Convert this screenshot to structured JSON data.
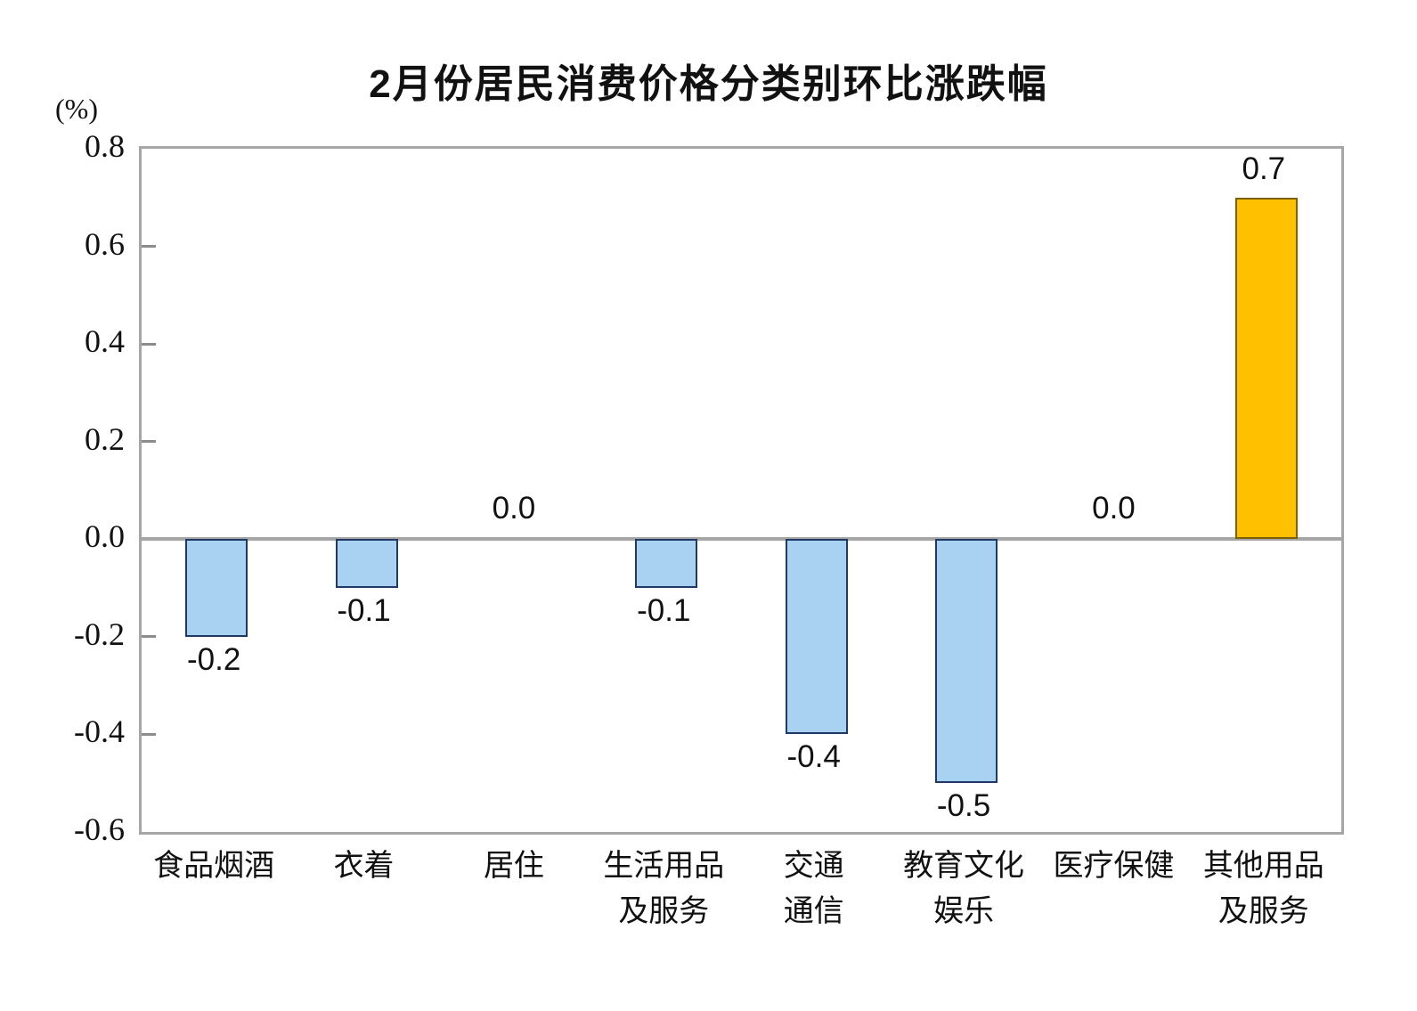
{
  "chart_data": {
    "type": "bar",
    "title": "2月份居民消费价格分类别环比涨跌幅",
    "unit_label": "(%)",
    "categories": [
      "食品烟酒",
      "衣着",
      "居住",
      "生活用品及服务",
      "交通通信",
      "教育文化娱乐",
      "医疗保健",
      "其他用品及服务"
    ],
    "category_lines": [
      [
        "食品烟酒"
      ],
      [
        "衣着"
      ],
      [
        "居住"
      ],
      [
        "生活用品",
        "及服务"
      ],
      [
        "交通",
        "通信"
      ],
      [
        "教育文化",
        "娱乐"
      ],
      [
        "医疗保健"
      ],
      [
        "其他用品",
        "及服务"
      ]
    ],
    "values": [
      -0.2,
      -0.1,
      0.0,
      -0.1,
      -0.4,
      -0.5,
      0.0,
      0.7
    ],
    "value_labels": [
      "-0.2",
      "-0.1",
      "0.0",
      "-0.1",
      "-0.4",
      "-0.5",
      "0.0",
      "0.7"
    ],
    "ylim": [
      -0.6,
      0.8
    ],
    "ytick_labels": [
      "0.8",
      "0.6",
      "0.4",
      "0.2",
      "0.0",
      "-0.2",
      "-0.4",
      "-0.6"
    ],
    "ytick_values": [
      0.8,
      0.6,
      0.4,
      0.2,
      0.0,
      -0.2,
      -0.4,
      -0.6
    ],
    "grid": "off",
    "legend": "none",
    "colors": {
      "negative_bar_fill": "#a8d1f2",
      "negative_bar_border": "#1f3864",
      "positive_bar_fill": "#ffc000",
      "positive_bar_border": "#7f6000",
      "axis_line": "#a6a6a6",
      "tick_mark": "#8c8c8c",
      "text": "#111111"
    }
  }
}
